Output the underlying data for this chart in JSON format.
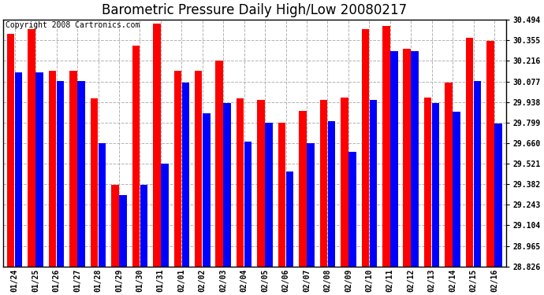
{
  "title": "Barometric Pressure Daily High/Low 20080217",
  "copyright": "Copyright 2008 Cartronics.com",
  "categories": [
    "01/24",
    "01/25",
    "01/26",
    "01/27",
    "01/28",
    "01/29",
    "01/30",
    "01/31",
    "02/01",
    "02/02",
    "02/03",
    "02/04",
    "02/05",
    "02/06",
    "02/07",
    "02/08",
    "02/09",
    "02/10",
    "02/11",
    "02/12",
    "02/13",
    "02/14",
    "02/15",
    "02/16"
  ],
  "highs": [
    30.4,
    30.43,
    30.15,
    30.15,
    29.96,
    29.38,
    30.32,
    30.47,
    30.15,
    30.15,
    30.22,
    29.96,
    29.95,
    29.8,
    29.88,
    29.95,
    29.97,
    30.43,
    30.45,
    30.3,
    29.97,
    30.07,
    30.37,
    30.35
  ],
  "lows": [
    30.14,
    30.14,
    30.08,
    30.08,
    29.66,
    29.31,
    29.38,
    29.52,
    30.07,
    29.86,
    29.93,
    29.67,
    29.8,
    29.47,
    29.66,
    29.81,
    29.6,
    29.95,
    30.28,
    30.28,
    29.93,
    29.87,
    30.08,
    29.79
  ],
  "high_color": "#ff0000",
  "low_color": "#0000ff",
  "bg_color": "#ffffff",
  "plot_bg_color": "#ffffff",
  "grid_color": "#aaaaaa",
  "ymin": 28.826,
  "ymax": 30.494,
  "yticks": [
    28.826,
    28.965,
    29.104,
    29.243,
    29.382,
    29.521,
    29.66,
    29.799,
    29.938,
    30.077,
    30.216,
    30.355,
    30.494
  ],
  "title_fontsize": 12,
  "tick_fontsize": 7,
  "copyright_fontsize": 7,
  "bar_width": 0.36,
  "bar_gap": 0.02
}
